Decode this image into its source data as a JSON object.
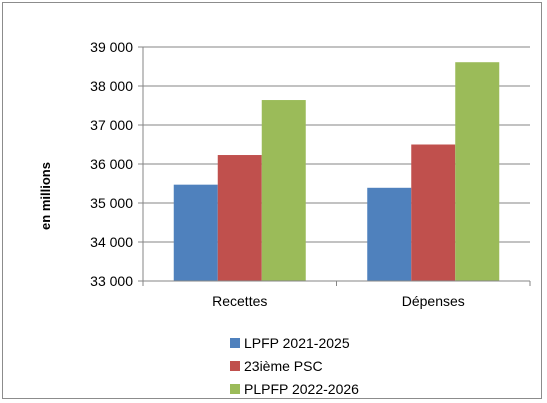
{
  "chart_data": {
    "type": "bar",
    "categories": [
      "Recettes",
      "Dépenses"
    ],
    "series": [
      {
        "name": "LPFP 2021-2025",
        "values": [
          35470,
          35390
        ],
        "color": "#4f81bd"
      },
      {
        "name": "23ième PSC",
        "values": [
          36230,
          36500
        ],
        "color": "#c0504d"
      },
      {
        "name": "PLPFP 2022-2026",
        "values": [
          37640,
          38610
        ],
        "color": "#9bbb59"
      }
    ],
    "ylabel": "en millions",
    "ylim": [
      33000,
      39000
    ],
    "yticks": [
      33000,
      34000,
      35000,
      36000,
      37000,
      38000,
      39000
    ],
    "ytick_labels": [
      "33 000",
      "34 000",
      "35 000",
      "36 000",
      "37 000",
      "38 000",
      "39 000"
    ],
    "grid": true,
    "legend": "bottom"
  }
}
